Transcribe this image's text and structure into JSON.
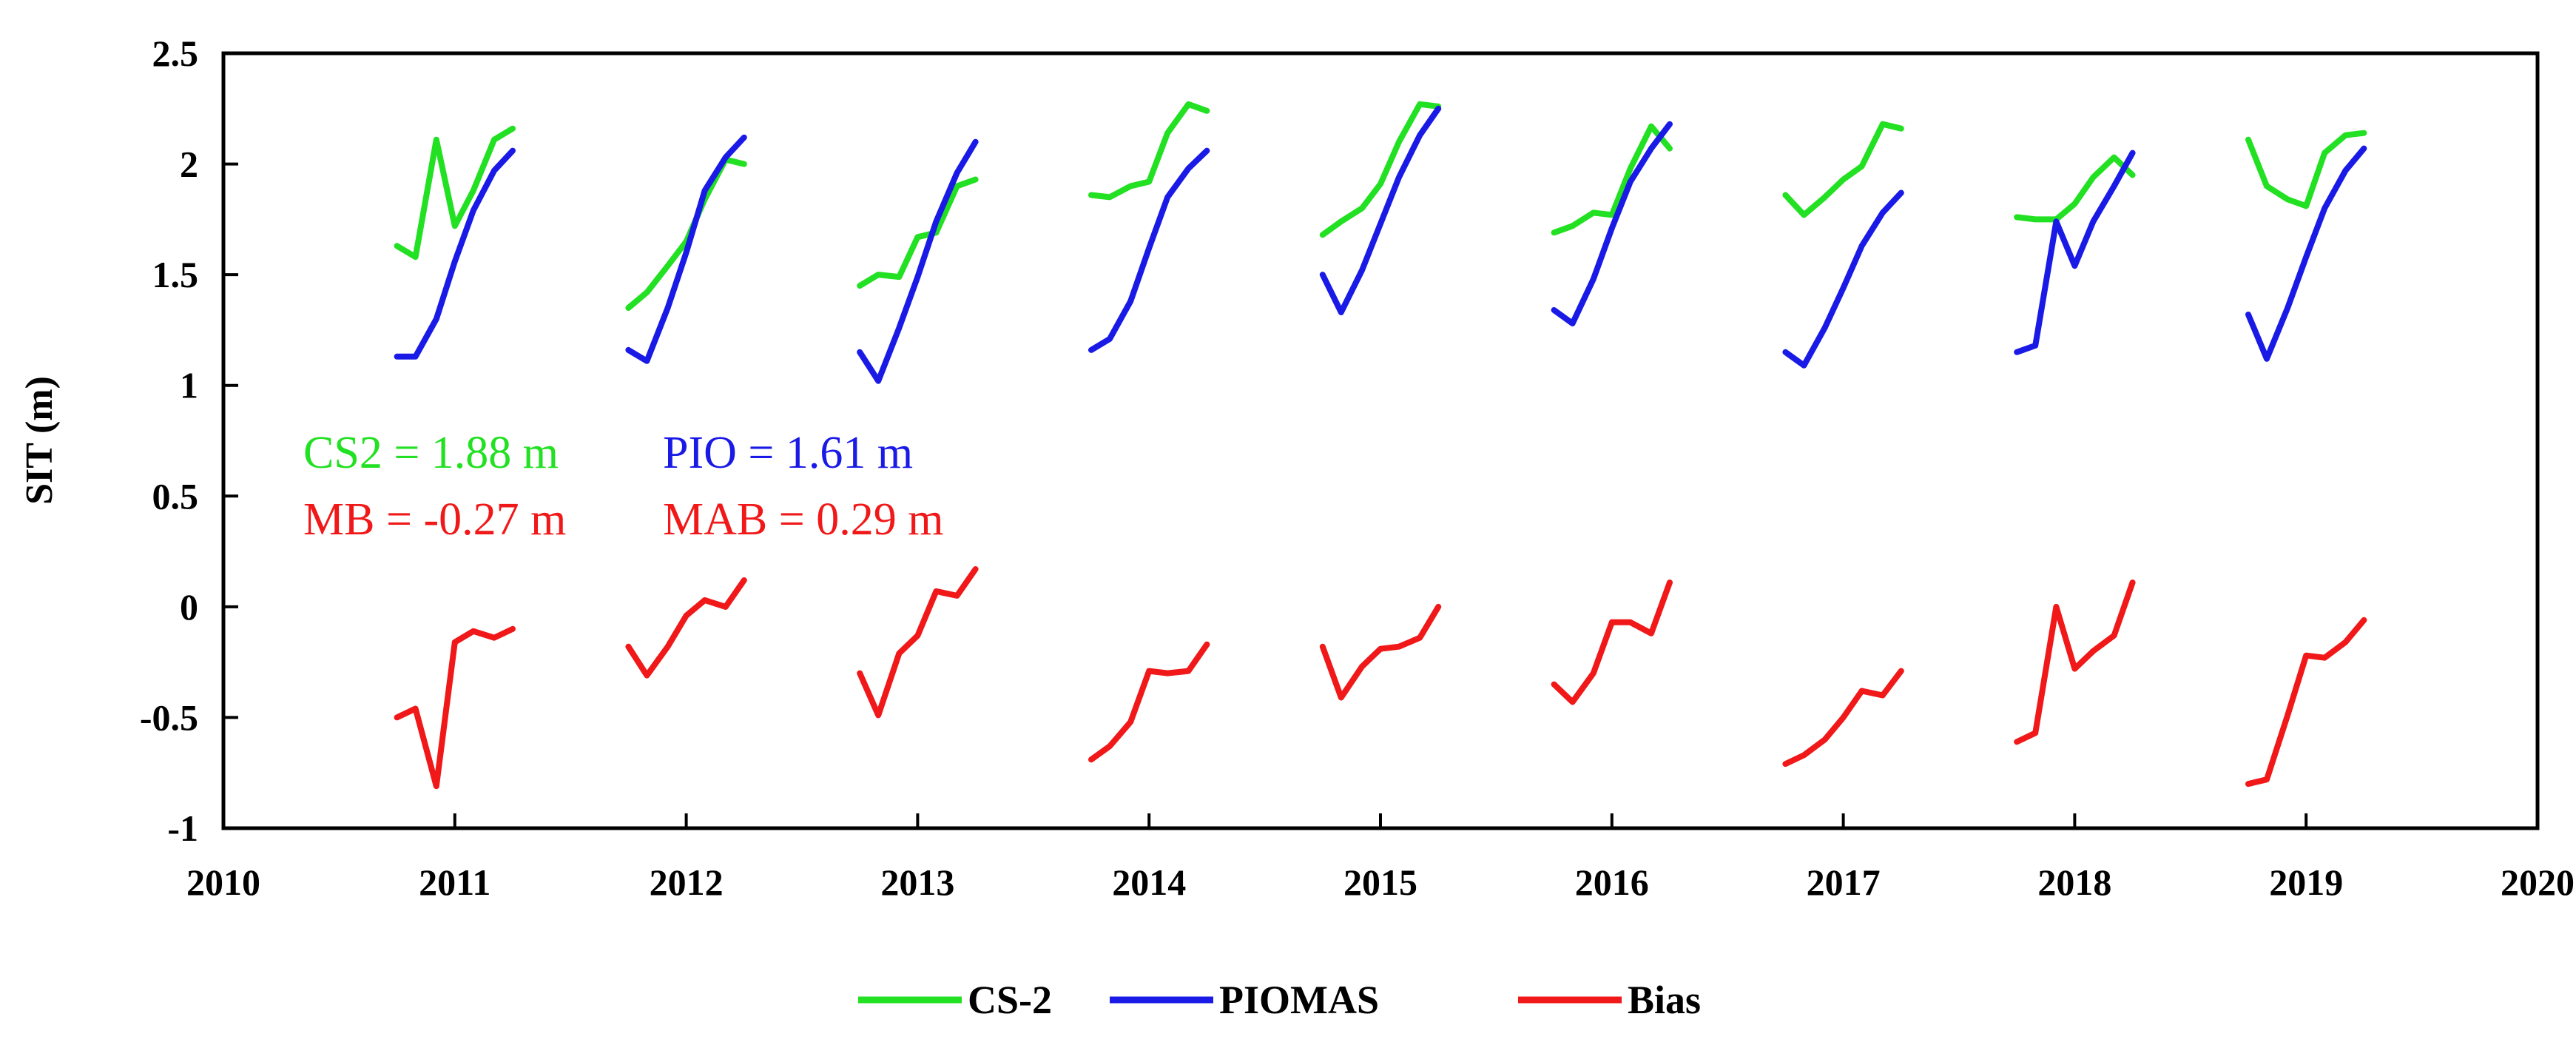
{
  "chart_data": {
    "type": "line",
    "title": "",
    "xlabel": "",
    "ylabel": "SIT (m)",
    "xlim": [
      2010,
      2020
    ],
    "ylim": [
      -1,
      2.5
    ],
    "x_ticks": [
      2010,
      2011,
      2012,
      2013,
      2014,
      2015,
      2016,
      2017,
      2018,
      2019,
      2020
    ],
    "y_ticks": [
      -1,
      -0.5,
      0,
      0.5,
      1,
      1.5,
      2,
      2.5
    ],
    "x_tick_labels": [
      "2010",
      "2011",
      "2012",
      "2013",
      "2014",
      "2015",
      "2016",
      "2017",
      "2018",
      "2019",
      "2020"
    ],
    "y_tick_labels": [
      "-1",
      "-0.5",
      "0",
      "0.5",
      "1",
      "1.5",
      "2",
      "2.5"
    ],
    "series": [
      {
        "name": "CS-2",
        "color": "#22e022",
        "segments": [
          [
            [
              2010.75,
              1.63
            ],
            [
              2010.83,
              1.58
            ],
            [
              2010.92,
              2.11
            ],
            [
              2011.0,
              1.72
            ],
            [
              2011.08,
              1.88
            ],
            [
              2011.17,
              2.11
            ],
            [
              2011.25,
              2.16
            ]
          ],
          [
            [
              2011.75,
              1.35
            ],
            [
              2011.83,
              1.42
            ],
            [
              2011.92,
              1.54
            ],
            [
              2012.0,
              1.65
            ],
            [
              2012.08,
              1.84
            ],
            [
              2012.17,
              2.02
            ],
            [
              2012.25,
              2.0
            ]
          ],
          [
            [
              2012.75,
              1.45
            ],
            [
              2012.83,
              1.5
            ],
            [
              2012.92,
              1.49
            ],
            [
              2013.0,
              1.67
            ],
            [
              2013.08,
              1.69
            ],
            [
              2013.17,
              1.9
            ],
            [
              2013.25,
              1.93
            ]
          ],
          [
            [
              2013.75,
              1.86
            ],
            [
              2013.83,
              1.85
            ],
            [
              2013.92,
              1.9
            ],
            [
              2014.0,
              1.92
            ],
            [
              2014.08,
              2.14
            ],
            [
              2014.17,
              2.27
            ],
            [
              2014.25,
              2.24
            ]
          ],
          [
            [
              2014.75,
              1.68
            ],
            [
              2014.83,
              1.74
            ],
            [
              2014.92,
              1.8
            ],
            [
              2015.0,
              1.91
            ],
            [
              2015.08,
              2.1
            ],
            [
              2015.17,
              2.27
            ],
            [
              2015.25,
              2.26
            ]
          ],
          [
            [
              2015.75,
              1.69
            ],
            [
              2015.83,
              1.72
            ],
            [
              2015.92,
              1.78
            ],
            [
              2016.0,
              1.77
            ],
            [
              2016.08,
              1.98
            ],
            [
              2016.17,
              2.17
            ],
            [
              2016.25,
              2.07
            ]
          ],
          [
            [
              2016.75,
              1.86
            ],
            [
              2016.83,
              1.77
            ],
            [
              2016.92,
              1.85
            ],
            [
              2017.0,
              1.93
            ],
            [
              2017.08,
              1.99
            ],
            [
              2017.17,
              2.18
            ],
            [
              2017.25,
              2.16
            ]
          ],
          [
            [
              2017.75,
              1.76
            ],
            [
              2017.83,
              1.75
            ],
            [
              2017.92,
              1.75
            ],
            [
              2018.0,
              1.82
            ],
            [
              2018.08,
              1.94
            ],
            [
              2018.17,
              2.03
            ],
            [
              2018.25,
              1.95
            ]
          ],
          [
            [
              2018.75,
              2.11
            ],
            [
              2018.83,
              1.9
            ],
            [
              2018.92,
              1.84
            ],
            [
              2019.0,
              1.81
            ],
            [
              2019.08,
              2.05
            ],
            [
              2019.17,
              2.13
            ],
            [
              2019.25,
              2.14
            ]
          ]
        ]
      },
      {
        "name": "PIOMAS",
        "color": "#1a1ae6",
        "segments": [
          [
            [
              2010.75,
              1.13
            ],
            [
              2010.83,
              1.13
            ],
            [
              2010.92,
              1.3
            ],
            [
              2011.0,
              1.56
            ],
            [
              2011.08,
              1.79
            ],
            [
              2011.17,
              1.97
            ],
            [
              2011.25,
              2.06
            ]
          ],
          [
            [
              2011.75,
              1.16
            ],
            [
              2011.83,
              1.11
            ],
            [
              2011.92,
              1.35
            ],
            [
              2012.0,
              1.6
            ],
            [
              2012.08,
              1.88
            ],
            [
              2012.17,
              2.03
            ],
            [
              2012.25,
              2.12
            ]
          ],
          [
            [
              2012.75,
              1.15
            ],
            [
              2012.83,
              1.02
            ],
            [
              2012.92,
              1.26
            ],
            [
              2013.0,
              1.49
            ],
            [
              2013.08,
              1.74
            ],
            [
              2013.17,
              1.96
            ],
            [
              2013.25,
              2.1
            ]
          ],
          [
            [
              2013.75,
              1.16
            ],
            [
              2013.83,
              1.21
            ],
            [
              2013.92,
              1.38
            ],
            [
              2014.0,
              1.62
            ],
            [
              2014.08,
              1.85
            ],
            [
              2014.17,
              1.98
            ],
            [
              2014.25,
              2.06
            ]
          ],
          [
            [
              2014.75,
              1.5
            ],
            [
              2014.83,
              1.33
            ],
            [
              2014.92,
              1.52
            ],
            [
              2015.0,
              1.73
            ],
            [
              2015.08,
              1.94
            ],
            [
              2015.17,
              2.13
            ],
            [
              2015.25,
              2.25
            ]
          ],
          [
            [
              2015.75,
              1.34
            ],
            [
              2015.83,
              1.28
            ],
            [
              2015.92,
              1.48
            ],
            [
              2016.0,
              1.71
            ],
            [
              2016.08,
              1.92
            ],
            [
              2016.17,
              2.07
            ],
            [
              2016.25,
              2.18
            ]
          ],
          [
            [
              2016.75,
              1.15
            ],
            [
              2016.83,
              1.09
            ],
            [
              2016.92,
              1.26
            ],
            [
              2017.0,
              1.44
            ],
            [
              2017.08,
              1.63
            ],
            [
              2017.17,
              1.78
            ],
            [
              2017.25,
              1.87
            ]
          ],
          [
            [
              2017.75,
              1.15
            ],
            [
              2017.83,
              1.18
            ],
            [
              2017.92,
              1.74
            ],
            [
              2018.0,
              1.54
            ],
            [
              2018.08,
              1.74
            ],
            [
              2018.17,
              1.9
            ],
            [
              2018.25,
              2.05
            ]
          ],
          [
            [
              2018.75,
              1.32
            ],
            [
              2018.83,
              1.12
            ],
            [
              2018.92,
              1.35
            ],
            [
              2019.0,
              1.58
            ],
            [
              2019.08,
              1.8
            ],
            [
              2019.17,
              1.97
            ],
            [
              2019.25,
              2.07
            ]
          ]
        ]
      },
      {
        "name": "Bias",
        "color": "#f01818",
        "segments": [
          [
            [
              2010.75,
              -0.5
            ],
            [
              2010.83,
              -0.46
            ],
            [
              2010.92,
              -0.81
            ],
            [
              2011.0,
              -0.16
            ],
            [
              2011.08,
              -0.11
            ],
            [
              2011.17,
              -0.14
            ],
            [
              2011.25,
              -0.1
            ]
          ],
          [
            [
              2011.75,
              -0.18
            ],
            [
              2011.83,
              -0.31
            ],
            [
              2011.92,
              -0.18
            ],
            [
              2012.0,
              -0.04
            ],
            [
              2012.08,
              0.03
            ],
            [
              2012.17,
              0.0
            ],
            [
              2012.25,
              0.12
            ]
          ],
          [
            [
              2012.75,
              -0.3
            ],
            [
              2012.83,
              -0.49
            ],
            [
              2012.92,
              -0.21
            ],
            [
              2013.0,
              -0.13
            ],
            [
              2013.08,
              0.07
            ],
            [
              2013.17,
              0.05
            ],
            [
              2013.25,
              0.17
            ]
          ],
          [
            [
              2013.75,
              -0.69
            ],
            [
              2013.83,
              -0.63
            ],
            [
              2013.92,
              -0.52
            ],
            [
              2014.0,
              -0.29
            ],
            [
              2014.08,
              -0.3
            ],
            [
              2014.17,
              -0.29
            ],
            [
              2014.25,
              -0.17
            ]
          ],
          [
            [
              2014.75,
              -0.18
            ],
            [
              2014.83,
              -0.41
            ],
            [
              2014.92,
              -0.27
            ],
            [
              2015.0,
              -0.19
            ],
            [
              2015.08,
              -0.18
            ],
            [
              2015.17,
              -0.14
            ],
            [
              2015.25,
              0.0
            ]
          ],
          [
            [
              2015.75,
              -0.35
            ],
            [
              2015.83,
              -0.43
            ],
            [
              2015.92,
              -0.3
            ],
            [
              2016.0,
              -0.07
            ],
            [
              2016.08,
              -0.07
            ],
            [
              2016.17,
              -0.12
            ],
            [
              2016.25,
              0.11
            ]
          ],
          [
            [
              2016.75,
              -0.71
            ],
            [
              2016.83,
              -0.67
            ],
            [
              2016.92,
              -0.6
            ],
            [
              2017.0,
              -0.5
            ],
            [
              2017.08,
              -0.38
            ],
            [
              2017.17,
              -0.4
            ],
            [
              2017.25,
              -0.29
            ]
          ],
          [
            [
              2017.75,
              -0.61
            ],
            [
              2017.83,
              -0.57
            ],
            [
              2017.92,
              0.0
            ],
            [
              2018.0,
              -0.28
            ],
            [
              2018.08,
              -0.2
            ],
            [
              2018.17,
              -0.13
            ],
            [
              2018.25,
              0.11
            ]
          ],
          [
            [
              2018.75,
              -0.8
            ],
            [
              2018.83,
              -0.78
            ],
            [
              2018.92,
              -0.49
            ],
            [
              2019.0,
              -0.22
            ],
            [
              2019.08,
              -0.23
            ],
            [
              2019.17,
              -0.16
            ],
            [
              2019.25,
              -0.06
            ]
          ]
        ]
      }
    ],
    "annotations": [
      {
        "id": "cs2",
        "text": "CS2 = 1.88 m",
        "color": "#22e022"
      },
      {
        "id": "pio",
        "text": "PIO = 1.61 m",
        "color": "#1a1ae6"
      },
      {
        "id": "mb",
        "text": "MB = -0.27 m",
        "color": "#f01818"
      },
      {
        "id": "mab",
        "text": "MAB = 0.29 m",
        "color": "#f01818"
      }
    ],
    "legend": {
      "placement": "bottom-center",
      "entries": [
        "CS-2",
        "PIOMAS",
        "Bias"
      ]
    },
    "grid": false
  }
}
